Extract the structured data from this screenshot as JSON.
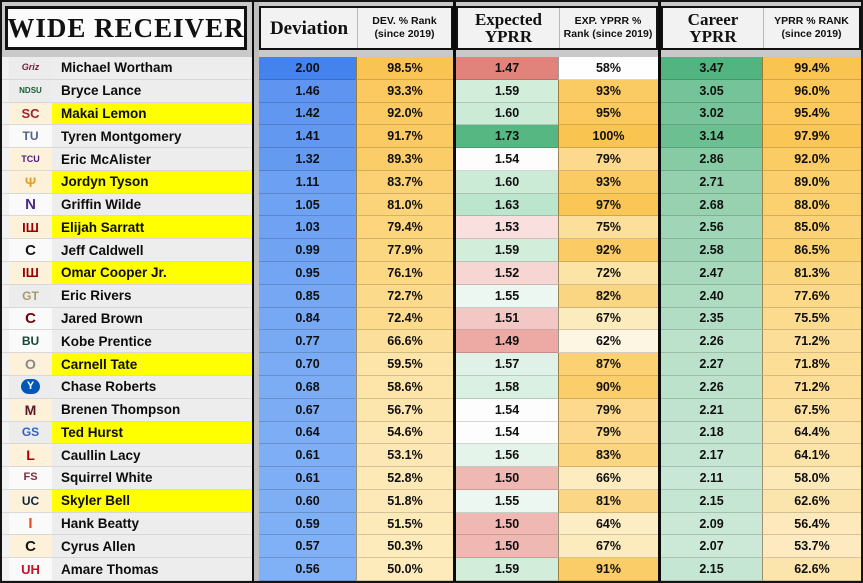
{
  "title": "WIDE RECEIVER",
  "columns": {
    "deviation": {
      "main": "Deviation",
      "sub": "DEV. % Rank (since 2019)"
    },
    "expected": {
      "main": "Expected YPRR",
      "sub": "EXP. YPRR % Rank (since 2019)"
    },
    "career": {
      "main": "Career YPRR",
      "sub": "YPRR % RANK (since 2019)"
    }
  },
  "colors": {
    "highlight": "#ffff00",
    "name_bg": "#ededed",
    "header_box_bg": "#f2f2f2",
    "frame": "#111111"
  },
  "rows": [
    {
      "name": "Michael Wortham",
      "logo": {
        "text": "Griz",
        "color": "#701b38",
        "size": 9,
        "italic": true
      },
      "logo_bg": "#ececec",
      "highlighted": false,
      "dev": "2.00",
      "dev_bg": "#4483ee",
      "dev_rank": "98.5%",
      "dev_rank_bg": "#fac455",
      "exp": "1.47",
      "exp_bg": "#e2837b",
      "exp_rank": "58%",
      "exp_rank_bg": "#fefefe",
      "career": "3.47",
      "career_bg": "#52b480",
      "yprr_rank": "99.4%",
      "yprr_rank_bg": "#fac452"
    },
    {
      "name": "Bryce Lance",
      "logo": {
        "text": "NDSU",
        "color": "#155c34",
        "size": 8,
        "italic": false
      },
      "logo_bg": "#ececec",
      "highlighted": false,
      "dev": "1.46",
      "dev_bg": "#5f95f0",
      "dev_rank": "93.3%",
      "dev_rank_bg": "#fbc95f",
      "exp": "1.59",
      "exp_bg": "#d2edda",
      "exp_rank": "93%",
      "exp_rank_bg": "#fbcb63",
      "career": "3.05",
      "career_bg": "#75c398",
      "yprr_rank": "96.0%",
      "yprr_rank_bg": "#fbc85b"
    },
    {
      "name": "Makai Lemon",
      "logo": {
        "text": "SC",
        "color": "#9d2235",
        "size": 13,
        "italic": false
      },
      "logo_bg": "#fdf2d9",
      "highlighted": true,
      "dev": "1.42",
      "dev_bg": "#6197f0",
      "dev_rank": "92.0%",
      "dev_rank_bg": "#fbca62",
      "exp": "1.60",
      "exp_bg": "#cbebd7",
      "exp_rank": "95%",
      "exp_rank_bg": "#fbc95e",
      "career": "3.02",
      "career_bg": "#78c49a",
      "yprr_rank": "95.4%",
      "yprr_rank_bg": "#fbc95d"
    },
    {
      "name": "Tyren Montgomery",
      "logo": {
        "text": "TU",
        "color": "#53628c",
        "size": 12,
        "italic": false
      },
      "logo_bg": "#fafafa",
      "highlighted": false,
      "dev": "1.41",
      "dev_bg": "#6298f0",
      "dev_rank": "91.7%",
      "dev_rank_bg": "#fbca63",
      "exp": "1.73",
      "exp_bg": "#57b783",
      "exp_rank": "100%",
      "exp_rank_bg": "#fac450",
      "career": "3.14",
      "career_bg": "#6bbf91",
      "yprr_rank": "97.9%",
      "yprr_rank_bg": "#fac656"
    },
    {
      "name": "Eric McAlister",
      "logo": {
        "text": "TCU",
        "color": "#4d1979",
        "size": 9,
        "italic": false
      },
      "logo_bg": "#fdf2d9",
      "highlighted": false,
      "dev": "1.32",
      "dev_bg": "#659af1",
      "dev_rank": "89.3%",
      "dev_rank_bg": "#fbcd68",
      "exp": "1.54",
      "exp_bg": "#fdfdfd",
      "exp_rank": "79%",
      "exp_rank_bg": "#fcd98c",
      "career": "2.86",
      "career_bg": "#87cba4",
      "yprr_rank": "92.0%",
      "yprr_rank_bg": "#fbcc64"
    },
    {
      "name": "Jordyn Tyson",
      "logo": {
        "text": "Ψ",
        "color": "#e0a025",
        "size": 14,
        "italic": false
      },
      "logo_bg": "#fdf2d9",
      "highlighted": true,
      "dev": "1.11",
      "dev_bg": "#6ca0f2",
      "dev_rank": "83.7%",
      "dev_rank_bg": "#fbd174",
      "exp": "1.60",
      "exp_bg": "#cbebd7",
      "exp_rank": "93%",
      "exp_rank_bg": "#fbcb63",
      "career": "2.71",
      "career_bg": "#94d0ad",
      "yprr_rank": "89.0%",
      "yprr_rank_bg": "#fbcf6c"
    },
    {
      "name": "Griffin Wilde",
      "logo": {
        "text": "N",
        "color": "#4e2a84",
        "size": 15,
        "italic": false
      },
      "logo_bg": "#fafafa",
      "highlighted": false,
      "dev": "1.05",
      "dev_bg": "#6ea2f2",
      "dev_rank": "81.0%",
      "dev_rank_bg": "#fbd47a",
      "exp": "1.63",
      "exp_bg": "#bce5cd",
      "exp_rank": "97%",
      "exp_rank_bg": "#fac757",
      "career": "2.68",
      "career_bg": "#97d1af",
      "yprr_rank": "88.0%",
      "yprr_rank_bg": "#fbd06e"
    },
    {
      "name": "Elijah Sarratt",
      "logo": {
        "text": "ІШ",
        "color": "#990000",
        "size": 13,
        "italic": false
      },
      "logo_bg": "#fdf2d9",
      "highlighted": true,
      "dev": "1.03",
      "dev_bg": "#6fa2f2",
      "dev_rank": "79.4%",
      "dev_rank_bg": "#fcd57d",
      "exp": "1.53",
      "exp_bg": "#f9e0de",
      "exp_rank": "75%",
      "exp_rank_bg": "#fcdf9b",
      "career": "2.56",
      "career_bg": "#a0d6b7",
      "yprr_rank": "85.0%",
      "yprr_rank_bg": "#fbd376"
    },
    {
      "name": "Jeff Caldwell",
      "logo": {
        "text": "C",
        "color": "#151515",
        "size": 15,
        "italic": false
      },
      "logo_bg": "#fafafa",
      "highlighted": false,
      "dev": "0.99",
      "dev_bg": "#70a3f2",
      "dev_rank": "77.9%",
      "dev_rank_bg": "#fcd781",
      "exp": "1.59",
      "exp_bg": "#d2edda",
      "exp_rank": "92%",
      "exp_rank_bg": "#fbcc66",
      "career": "2.58",
      "career_bg": "#9fd5b6",
      "yprr_rank": "86.5%",
      "yprr_rank_bg": "#fbd272"
    },
    {
      "name": "Omar Cooper Jr.",
      "logo": {
        "text": "ІШ",
        "color": "#990000",
        "size": 13,
        "italic": false
      },
      "logo_bg": "#fdf2d9",
      "highlighted": true,
      "dev": "0.95",
      "dev_bg": "#72a5f3",
      "dev_rank": "76.1%",
      "dev_rank_bg": "#fcd885",
      "exp": "1.52",
      "exp_bg": "#f6d5d2",
      "exp_rank": "72%",
      "exp_rank_bg": "#fce3a6",
      "career": "2.47",
      "career_bg": "#a8d9bd",
      "yprr_rank": "81.3%",
      "yprr_rank_bg": "#fbd680"
    },
    {
      "name": "Eric Rivers",
      "logo": {
        "text": "GT",
        "color": "#a89968",
        "size": 12,
        "italic": false
      },
      "logo_bg": "#ececec",
      "highlighted": false,
      "dev": "0.85",
      "dev_bg": "#75a7f3",
      "dev_rank": "72.7%",
      "dev_rank_bg": "#fcda8c",
      "exp": "1.55",
      "exp_bg": "#ebf7f0",
      "exp_rank": "82%",
      "exp_rank_bg": "#fbd682",
      "career": "2.40",
      "career_bg": "#aedcc1",
      "yprr_rank": "77.6%",
      "yprr_rank_bg": "#fcd989"
    },
    {
      "name": "Jared Brown",
      "logo": {
        "text": "C",
        "color": "#73000a",
        "size": 15,
        "italic": false
      },
      "logo_bg": "#fafafa",
      "highlighted": false,
      "dev": "0.84",
      "dev_bg": "#76a8f3",
      "dev_rank": "72.4%",
      "dev_rank_bg": "#fcdb8d",
      "exp": "1.51",
      "exp_bg": "#f3c7c3",
      "exp_rank": "67%",
      "exp_rank_bg": "#fcebbc",
      "career": "2.35",
      "career_bg": "#b2ddc5",
      "yprr_rank": "75.5%",
      "yprr_rank_bg": "#fcdb8e"
    },
    {
      "name": "Kobe Prentice",
      "logo": {
        "text": "BU",
        "color": "#154734",
        "size": 12,
        "italic": false
      },
      "logo_bg": "#fafafa",
      "highlighted": false,
      "dev": "0.77",
      "dev_bg": "#78aaf4",
      "dev_rank": "66.6%",
      "dev_rank_bg": "#fcdf9a",
      "exp": "1.49",
      "exp_bg": "#eda9a3",
      "exp_rank": "62%",
      "exp_rank_bg": "#fdf6e3",
      "career": "2.26",
      "career_bg": "#bce2cc",
      "yprr_rank": "71.2%",
      "yprr_rank_bg": "#fcde98"
    },
    {
      "name": "Carnell Tate",
      "logo": {
        "text": "O",
        "color": "#888888",
        "size": 14,
        "italic": false
      },
      "logo_bg": "#fdf2d9",
      "highlighted": true,
      "dev": "0.70",
      "dev_bg": "#7babf4",
      "dev_rank": "59.5%",
      "dev_rank_bg": "#fde4a8",
      "exp": "1.57",
      "exp_bg": "#e0f2e7",
      "exp_rank": "87%",
      "exp_rank_bg": "#fbd173",
      "career": "2.27",
      "career_bg": "#bbe1cb",
      "yprr_rank": "71.8%",
      "yprr_rank_bg": "#fcde97"
    },
    {
      "name": "Chase Roberts",
      "logo": {
        "text": "Y",
        "color": "#ffffff",
        "size": 11,
        "italic": false,
        "badge": "#0057b8"
      },
      "logo_bg": "#ececec",
      "highlighted": false,
      "dev": "0.68",
      "dev_bg": "#7bacf4",
      "dev_rank": "58.6%",
      "dev_rank_bg": "#fde5aa",
      "exp": "1.58",
      "exp_bg": "#daf0e2",
      "exp_rank": "90%",
      "exp_rank_bg": "#fbce6b",
      "career": "2.26",
      "career_bg": "#bce2cc",
      "yprr_rank": "71.2%",
      "yprr_rank_bg": "#fcde98"
    },
    {
      "name": "Brenen Thompson",
      "logo": {
        "text": "M",
        "color": "#5d1725",
        "size": 14,
        "italic": false
      },
      "logo_bg": "#fdf2d9",
      "highlighted": false,
      "dev": "0.67",
      "dev_bg": "#7cacf4",
      "dev_rank": "56.7%",
      "dev_rank_bg": "#fde6ae",
      "exp": "1.54",
      "exp_bg": "#fdfdfd",
      "exp_rank": "79%",
      "exp_rank_bg": "#fcd98c",
      "career": "2.21",
      "career_bg": "#c0e3cf",
      "yprr_rank": "67.5%",
      "yprr_rank_bg": "#fce1a1"
    },
    {
      "name": "Ted Hurst",
      "logo": {
        "text": "GS",
        "color": "#2e62c8",
        "size": 12,
        "italic": false
      },
      "logo_bg": "#ececec",
      "highlighted": true,
      "dev": "0.64",
      "dev_bg": "#7dadf4",
      "dev_rank": "54.6%",
      "dev_rank_bg": "#fde7b2",
      "exp": "1.54",
      "exp_bg": "#fdfdfd",
      "exp_rank": "79%",
      "exp_rank_bg": "#fcd98c",
      "career": "2.18",
      "career_bg": "#c3e4d1",
      "yprr_rank": "64.4%",
      "yprr_rank_bg": "#fce4a8"
    },
    {
      "name": "Caullin Lacy",
      "logo": {
        "text": "L",
        "color": "#ad0000",
        "size": 14,
        "italic": false
      },
      "logo_bg": "#fdf2d9",
      "highlighted": false,
      "dev": "0.61",
      "dev_bg": "#7eaef5",
      "dev_rank": "53.1%",
      "dev_rank_bg": "#fde8b5",
      "exp": "1.56",
      "exp_bg": "#e5f4eb",
      "exp_rank": "83%",
      "exp_rank_bg": "#fbd57f",
      "career": "2.17",
      "career_bg": "#c4e5d2",
      "yprr_rank": "64.1%",
      "yprr_rank_bg": "#fce4a9"
    },
    {
      "name": "Squirrel White",
      "logo": {
        "text": "FS",
        "color": "#782f40",
        "size": 11,
        "italic": false
      },
      "logo_bg": "#fafafa",
      "highlighted": false,
      "dev": "0.61",
      "dev_bg": "#7eaef5",
      "dev_rank": "52.8%",
      "dev_rank_bg": "#fde9b6",
      "exp": "1.50",
      "exp_bg": "#f0b8b3",
      "exp_rank": "66%",
      "exp_rank_bg": "#fcecbf",
      "career": "2.11",
      "career_bg": "#c9e7d6",
      "yprr_rank": "58.0%",
      "yprr_rank_bg": "#fde8b7"
    },
    {
      "name": "Skyler Bell",
      "logo": {
        "text": "UC",
        "color": "#0c2340",
        "size": 12,
        "italic": false
      },
      "logo_bg": "#fdf2d9",
      "highlighted": true,
      "dev": "0.60",
      "dev_bg": "#7eaff5",
      "dev_rank": "51.8%",
      "dev_rank_bg": "#fde9b8",
      "exp": "1.55",
      "exp_bg": "#ebf7f0",
      "exp_rank": "81%",
      "exp_rank_bg": "#fbd785",
      "career": "2.15",
      "career_bg": "#c6e6d4",
      "yprr_rank": "62.6%",
      "yprr_rank_bg": "#fce5ad"
    },
    {
      "name": "Hank Beatty",
      "logo": {
        "text": "I",
        "color": "#e84a27",
        "size": 15,
        "italic": false
      },
      "logo_bg": "#fafafa",
      "highlighted": false,
      "dev": "0.59",
      "dev_bg": "#7faff5",
      "dev_rank": "51.5%",
      "dev_rank_bg": "#fdeab9",
      "exp": "1.50",
      "exp_bg": "#f0b8b3",
      "exp_rank": "64%",
      "exp_rank_bg": "#fdedc4",
      "career": "2.09",
      "career_bg": "#cbe8d7",
      "yprr_rank": "56.4%",
      "yprr_rank_bg": "#fde9bb"
    },
    {
      "name": "Cyrus Allen",
      "logo": {
        "text": "C",
        "color": "#151515",
        "size": 15,
        "italic": false
      },
      "logo_bg": "#fdf2d9",
      "highlighted": false,
      "dev": "0.57",
      "dev_bg": "#80b0f5",
      "dev_rank": "50.3%",
      "dev_rank_bg": "#fdebbb",
      "exp": "1.50",
      "exp_bg": "#f0b8b3",
      "exp_rank": "67%",
      "exp_rank_bg": "#fcebbc",
      "career": "2.07",
      "career_bg": "#cce9d8",
      "yprr_rank": "53.7%",
      "yprr_rank_bg": "#fdeac0"
    },
    {
      "name": "Amare Thomas",
      "logo": {
        "text": "UH",
        "color": "#c8102e",
        "size": 13,
        "italic": false
      },
      "logo_bg": "#fafafa",
      "highlighted": false,
      "dev": "0.56",
      "dev_bg": "#80b0f5",
      "dev_rank": "50.0%",
      "dev_rank_bg": "#fdebbc",
      "exp": "1.59",
      "exp_bg": "#d2edda",
      "exp_rank": "91%",
      "exp_rank_bg": "#fbcd68",
      "career": "2.15",
      "career_bg": "#c6e6d4",
      "yprr_rank": "62.6%",
      "yprr_rank_bg": "#fce5ad"
    }
  ]
}
